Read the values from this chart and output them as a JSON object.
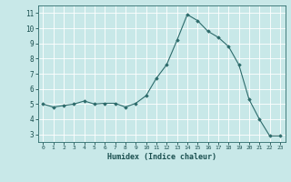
{
  "x": [
    0,
    1,
    2,
    3,
    4,
    5,
    6,
    7,
    8,
    9,
    10,
    11,
    12,
    13,
    14,
    15,
    16,
    17,
    18,
    19,
    20,
    21,
    22,
    23
  ],
  "y": [
    5.0,
    4.8,
    4.9,
    5.0,
    5.2,
    5.0,
    5.05,
    5.05,
    4.8,
    5.05,
    5.55,
    6.7,
    7.6,
    9.2,
    10.9,
    10.5,
    9.8,
    9.4,
    8.8,
    7.6,
    5.3,
    4.0,
    2.9,
    2.9
  ],
  "line_color": "#2d6b6b",
  "marker": "D",
  "marker_size": 1.8,
  "bg_color": "#c8e8e8",
  "grid_color": "#ffffff",
  "xlabel": "Humidex (Indice chaleur)",
  "xlabel_color": "#1a4f4f",
  "tick_color": "#1a4f4f",
  "xlim": [
    -0.5,
    23.5
  ],
  "ylim": [
    2.5,
    11.5
  ],
  "yticks": [
    3,
    4,
    5,
    6,
    7,
    8,
    9,
    10,
    11
  ],
  "xticks": [
    0,
    1,
    2,
    3,
    4,
    5,
    6,
    7,
    8,
    9,
    10,
    11,
    12,
    13,
    14,
    15,
    16,
    17,
    18,
    19,
    20,
    21,
    22,
    23
  ],
  "spine_color": "#2d6b6b",
  "figwidth": 3.2,
  "figheight": 2.0,
  "dpi": 100
}
